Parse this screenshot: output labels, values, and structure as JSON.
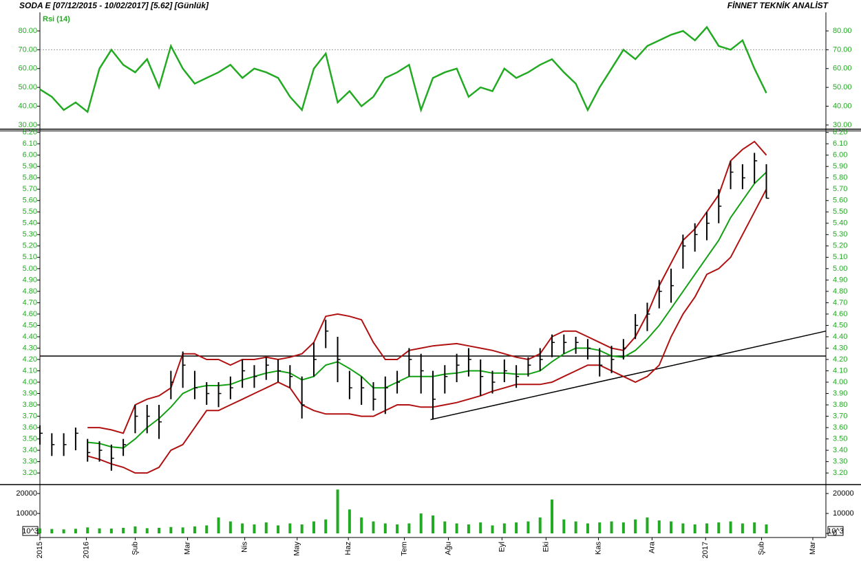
{
  "header": {
    "title": "SODA  E  [07/12/2015 - 10/02/2017]  [5.62]  [Günlük]",
    "brand": "FİNNET TEKNİK ANALİST"
  },
  "chart_data": [
    {
      "type": "line",
      "title": "Rsi (14)",
      "color": "#22aa22",
      "tick_color": "#22aa22",
      "reference": 70,
      "x": [
        0,
        1,
        2,
        3,
        4,
        5,
        6,
        7,
        8,
        9,
        10,
        11,
        12,
        13,
        14,
        15,
        16,
        17,
        18,
        19,
        20,
        21,
        22,
        23,
        24,
        25,
        26,
        27,
        28,
        29,
        30,
        31,
        32,
        33,
        34,
        35,
        36,
        37,
        38,
        39,
        40,
        41,
        42,
        43,
        44,
        45,
        46,
        47,
        48,
        49,
        50,
        51,
        52,
        53,
        54,
        55,
        56,
        57,
        58,
        59,
        60,
        61
      ],
      "values": [
        49,
        45,
        38,
        42,
        37,
        60,
        70,
        62,
        58,
        65,
        50,
        72,
        60,
        52,
        55,
        58,
        62,
        55,
        60,
        58,
        55,
        45,
        38,
        60,
        68,
        42,
        48,
        40,
        45,
        55,
        58,
        62,
        38,
        55,
        58,
        60,
        45,
        50,
        48,
        60,
        55,
        58,
        62,
        65,
        58,
        52,
        38,
        50,
        60,
        70,
        65,
        72,
        75,
        78,
        80,
        75,
        82,
        72,
        70,
        75,
        60,
        47
      ],
      "xlim": [
        0,
        66
      ],
      "ylim": [
        28.5,
        88.4
      ],
      "yticks": [
        {
          "value": 30,
          "label": "30.00"
        },
        {
          "value": 40,
          "label": "40.00"
        },
        {
          "value": 50,
          "label": "50.00"
        },
        {
          "value": 60,
          "label": "60.00"
        },
        {
          "value": 70,
          "label": "70.00"
        },
        {
          "value": 80,
          "label": "80.00"
        }
      ]
    },
    {
      "type": "hlc",
      "bar_color": "#000000",
      "band_color": "#b01010",
      "middle_color": "#11a011",
      "tick_color": "#22aa22",
      "line_color": "#000000",
      "x": [
        0,
        1,
        2,
        3,
        4,
        5,
        6,
        7,
        8,
        9,
        10,
        11,
        12,
        13,
        14,
        15,
        16,
        17,
        18,
        19,
        20,
        21,
        22,
        23,
        24,
        25,
        26,
        27,
        28,
        29,
        30,
        31,
        32,
        33,
        34,
        35,
        36,
        37,
        38,
        39,
        40,
        41,
        42,
        43,
        44,
        45,
        46,
        47,
        48,
        49,
        50,
        51,
        52,
        53,
        54,
        55,
        56,
        57,
        58,
        59,
        60,
        61
      ],
      "high": [
        3.62,
        3.55,
        3.55,
        3.6,
        3.5,
        3.48,
        3.45,
        3.5,
        3.8,
        3.8,
        3.8,
        4.1,
        4.27,
        4.1,
        4.0,
        4.0,
        4.05,
        4.2,
        4.15,
        4.22,
        4.2,
        4.15,
        4.05,
        4.35,
        4.55,
        4.4,
        4.1,
        4.05,
        4.0,
        4.05,
        4.1,
        4.3,
        4.25,
        4.1,
        4.15,
        4.25,
        4.3,
        4.2,
        4.1,
        4.2,
        4.15,
        4.22,
        4.3,
        4.42,
        4.42,
        4.4,
        4.38,
        4.3,
        4.32,
        4.38,
        4.6,
        4.7,
        4.9,
        5.0,
        5.3,
        5.4,
        5.5,
        5.7,
        5.95,
        5.92,
        6.02,
        5.92
      ],
      "low": [
        3.45,
        3.35,
        3.35,
        3.4,
        3.3,
        3.3,
        3.22,
        3.35,
        3.55,
        3.55,
        3.5,
        3.85,
        3.95,
        3.85,
        3.8,
        3.78,
        3.85,
        3.95,
        3.95,
        4.02,
        4.0,
        3.95,
        3.68,
        4.05,
        4.3,
        4.0,
        3.85,
        3.8,
        3.75,
        3.72,
        3.9,
        4.05,
        3.9,
        3.67,
        3.9,
        4.0,
        4.05,
        3.88,
        3.9,
        4.0,
        3.95,
        4.05,
        4.1,
        4.22,
        4.25,
        4.25,
        4.2,
        4.05,
        4.08,
        4.2,
        4.38,
        4.45,
        4.65,
        4.7,
        5.0,
        5.15,
        5.25,
        5.4,
        5.7,
        5.7,
        5.75,
        5.62
      ],
      "close": [
        3.55,
        3.45,
        3.45,
        3.55,
        3.38,
        3.4,
        3.33,
        3.45,
        3.7,
        3.7,
        3.65,
        4.0,
        4.15,
        3.95,
        3.9,
        3.9,
        3.95,
        4.1,
        4.05,
        4.15,
        4.1,
        4.05,
        3.8,
        4.2,
        4.45,
        4.2,
        3.95,
        3.95,
        3.85,
        3.95,
        4.0,
        4.2,
        4.1,
        3.85,
        4.05,
        4.15,
        4.2,
        4.05,
        4.0,
        4.1,
        4.05,
        4.15,
        4.2,
        4.35,
        4.35,
        4.35,
        4.3,
        4.15,
        4.2,
        4.3,
        4.5,
        4.6,
        4.8,
        4.85,
        5.2,
        5.3,
        5.4,
        5.55,
        5.85,
        5.8,
        5.95,
        5.62
      ],
      "bands": {
        "upper": [
          null,
          null,
          null,
          null,
          3.6,
          3.6,
          3.58,
          3.55,
          3.8,
          3.85,
          3.88,
          3.95,
          4.25,
          4.25,
          4.2,
          4.2,
          4.15,
          4.2,
          4.2,
          4.22,
          4.2,
          4.22,
          4.25,
          4.35,
          4.58,
          4.6,
          4.58,
          4.55,
          4.35,
          4.2,
          4.2,
          4.28,
          4.3,
          4.32,
          4.33,
          4.34,
          4.32,
          4.3,
          4.28,
          4.25,
          4.22,
          4.2,
          4.25,
          4.4,
          4.45,
          4.45,
          4.4,
          4.35,
          4.3,
          4.28,
          4.4,
          4.6,
          4.85,
          5.05,
          5.25,
          5.35,
          5.5,
          5.65,
          5.95,
          6.05,
          6.12,
          6.0
        ],
        "middle": [
          null,
          null,
          null,
          null,
          3.47,
          3.46,
          3.43,
          3.42,
          3.5,
          3.6,
          3.68,
          3.78,
          3.9,
          3.95,
          3.97,
          3.97,
          3.98,
          4.02,
          4.05,
          4.08,
          4.1,
          4.08,
          4.02,
          4.05,
          4.15,
          4.18,
          4.12,
          4.05,
          3.95,
          3.95,
          4.0,
          4.05,
          4.05,
          4.05,
          4.07,
          4.08,
          4.1,
          4.1,
          4.08,
          4.08,
          4.07,
          4.07,
          4.1,
          4.18,
          4.25,
          4.3,
          4.3,
          4.28,
          4.23,
          4.22,
          4.28,
          4.38,
          4.5,
          4.65,
          4.8,
          4.95,
          5.1,
          5.25,
          5.45,
          5.6,
          5.75,
          5.85
        ],
        "lower": [
          null,
          null,
          null,
          null,
          3.35,
          3.32,
          3.28,
          3.25,
          3.2,
          3.2,
          3.25,
          3.4,
          3.45,
          3.6,
          3.75,
          3.75,
          3.8,
          3.85,
          3.9,
          3.95,
          4.0,
          3.95,
          3.8,
          3.75,
          3.72,
          3.72,
          3.72,
          3.7,
          3.7,
          3.75,
          3.8,
          3.8,
          3.78,
          3.78,
          3.8,
          3.82,
          3.85,
          3.88,
          3.92,
          3.95,
          3.98,
          3.98,
          3.98,
          4.0,
          4.05,
          4.1,
          4.15,
          4.15,
          4.1,
          4.05,
          4.0,
          4.05,
          4.15,
          4.4,
          4.6,
          4.75,
          4.95,
          5.0,
          5.1,
          5.3,
          5.5,
          5.7
        ]
      },
      "hline": 4.23,
      "trendline": {
        "x": [
          32.8,
          66
        ],
        "y": [
          3.67,
          4.45
        ]
      },
      "xlim": [
        0,
        66
      ],
      "ylim": [
        3.11,
        6.21
      ],
      "yticks": [
        {
          "value": 3.2,
          "label": "3.20"
        },
        {
          "value": 3.3,
          "label": "3.30"
        },
        {
          "value": 3.4,
          "label": "3.40"
        },
        {
          "value": 3.5,
          "label": "3.50"
        },
        {
          "value": 3.6,
          "label": "3.60"
        },
        {
          "value": 3.7,
          "label": "3.70"
        },
        {
          "value": 3.8,
          "label": "3.80"
        },
        {
          "value": 3.9,
          "label": "3.90"
        },
        {
          "value": 4.0,
          "label": "4.00"
        },
        {
          "value": 4.1,
          "label": "4.10"
        },
        {
          "value": 4.2,
          "label": "4.20"
        },
        {
          "value": 4.3,
          "label": "4.30"
        },
        {
          "value": 4.4,
          "label": "4.40"
        },
        {
          "value": 4.5,
          "label": "4.50"
        },
        {
          "value": 4.6,
          "label": "4.60"
        },
        {
          "value": 4.7,
          "label": "4.70"
        },
        {
          "value": 4.8,
          "label": "4.80"
        },
        {
          "value": 4.9,
          "label": "4.90"
        },
        {
          "value": 5.0,
          "label": "5.00"
        },
        {
          "value": 5.1,
          "label": "5.10"
        },
        {
          "value": 5.2,
          "label": "5.20"
        },
        {
          "value": 5.3,
          "label": "5.30"
        },
        {
          "value": 5.4,
          "label": "5.40"
        },
        {
          "value": 5.5,
          "label": "5.50"
        },
        {
          "value": 5.6,
          "label": "5.60"
        },
        {
          "value": 5.7,
          "label": "5.70"
        },
        {
          "value": 5.8,
          "label": "5.80"
        },
        {
          "value": 5.9,
          "label": "5.90"
        },
        {
          "value": 6.0,
          "label": "6.00"
        },
        {
          "value": 6.1,
          "label": "6.10"
        },
        {
          "value": 6.2,
          "label": "6.20"
        }
      ]
    },
    {
      "type": "bar",
      "color": "#22aa22",
      "tick_color": "#000000",
      "unit_label": "10^3",
      "x": [
        0,
        1,
        2,
        3,
        4,
        5,
        6,
        7,
        8,
        9,
        10,
        11,
        12,
        13,
        14,
        15,
        16,
        17,
        18,
        19,
        20,
        21,
        22,
        23,
        24,
        25,
        26,
        27,
        28,
        29,
        30,
        31,
        32,
        33,
        34,
        35,
        36,
        37,
        38,
        39,
        40,
        41,
        42,
        43,
        44,
        45,
        46,
        47,
        48,
        49,
        50,
        51,
        52,
        53,
        54,
        55,
        56,
        57,
        58,
        59,
        60,
        61
      ],
      "values": [
        2500,
        2200,
        2000,
        2300,
        3000,
        2500,
        2400,
        2800,
        3500,
        2600,
        2800,
        3200,
        3000,
        3500,
        4000,
        8000,
        6000,
        5000,
        4500,
        5500,
        4000,
        5000,
        4500,
        6000,
        7000,
        22000,
        12000,
        8000,
        6000,
        5000,
        4500,
        5000,
        10000,
        9000,
        6000,
        5000,
        4500,
        5500,
        4000,
        5000,
        5500,
        6000,
        8000,
        17000,
        7000,
        6000,
        5000,
        5500,
        6000,
        5500,
        7000,
        8000,
        6500,
        6000,
        5000,
        4500,
        5000,
        5500,
        6000,
        5000,
        5500,
        4500
      ],
      "xlim": [
        0,
        66
      ],
      "ylim": [
        -2070,
        23450
      ],
      "yticks": [
        0,
        10000,
        20000
      ],
      "xticks": [
        {
          "value": 0,
          "label": "2015"
        },
        {
          "value": 3.9,
          "label": "2016"
        },
        {
          "value": 8.0,
          "label": "Şub"
        },
        {
          "value": 12.4,
          "label": "Mar"
        },
        {
          "value": 17.2,
          "label": "Nis"
        },
        {
          "value": 21.6,
          "label": "May"
        },
        {
          "value": 25.9,
          "label": "Haz"
        },
        {
          "value": 30.6,
          "label": "Tem"
        },
        {
          "value": 34.3,
          "label": "Ağu"
        },
        {
          "value": 38.8,
          "label": "Eyl"
        },
        {
          "value": 42.5,
          "label": "Eki"
        },
        {
          "value": 46.9,
          "label": "Kas"
        },
        {
          "value": 51.4,
          "label": "Ara"
        },
        {
          "value": 55.9,
          "label": "2017"
        },
        {
          "value": 60.6,
          "label": "Şub"
        },
        {
          "value": 64.9,
          "label": "Mar"
        }
      ]
    }
  ]
}
